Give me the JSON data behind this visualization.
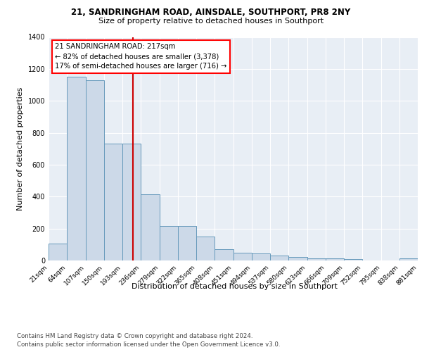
{
  "title1": "21, SANDRINGHAM ROAD, AINSDALE, SOUTHPORT, PR8 2NY",
  "title2": "Size of property relative to detached houses in Southport",
  "xlabel": "Distribution of detached houses by size in Southport",
  "ylabel": "Number of detached properties",
  "footnote1": "Contains HM Land Registry data © Crown copyright and database right 2024.",
  "footnote2": "Contains public sector information licensed under the Open Government Licence v3.0.",
  "annotation_line1": "21 SANDRINGHAM ROAD: 217sqm",
  "annotation_line2": "← 82% of detached houses are smaller (3,378)",
  "annotation_line3": "17% of semi-detached houses are larger (716) →",
  "bin_starts": [
    21,
    64,
    107,
    150,
    193,
    236,
    279,
    322,
    365,
    408,
    451,
    494,
    537,
    580,
    623,
    666,
    709,
    752,
    795,
    838
  ],
  "bin_heights": [
    107,
    1150,
    1130,
    730,
    730,
    415,
    215,
    215,
    150,
    70,
    50,
    45,
    30,
    20,
    13,
    13,
    10,
    0,
    0,
    13
  ],
  "bin_width": 43,
  "bar_facecolor": "#ccd9e8",
  "bar_edgecolor": "#6699bb",
  "vline_color": "#cc0000",
  "vline_x": 217,
  "bg_color": "#e8eef5",
  "ylim": [
    0,
    1400
  ],
  "yticks": [
    0,
    200,
    400,
    600,
    800,
    1000,
    1200,
    1400
  ],
  "xtick_labels": [
    "21sqm",
    "64sqm",
    "107sqm",
    "150sqm",
    "193sqm",
    "236sqm",
    "279sqm",
    "322sqm",
    "365sqm",
    "408sqm",
    "451sqm",
    "494sqm",
    "537sqm",
    "580sqm",
    "623sqm",
    "666sqm",
    "709sqm",
    "752sqm",
    "795sqm",
    "838sqm",
    "881sqm"
  ],
  "grid_color": "#ffffff",
  "tick_fontsize": 6.5,
  "ylabel_fontsize": 8.0
}
